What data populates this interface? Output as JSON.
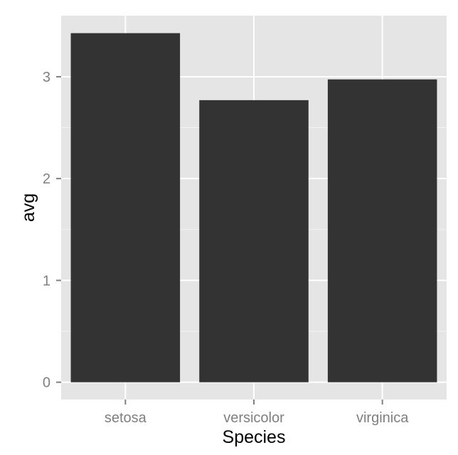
{
  "chart_data": {
    "type": "bar",
    "title": "",
    "xlabel": "Species",
    "ylabel": "avg",
    "categories": [
      "setosa",
      "versicolor",
      "virginica"
    ],
    "values": [
      3.428,
      2.77,
      2.974
    ],
    "ylim": [
      -0.17,
      3.6
    ],
    "yticks": [
      0,
      1,
      2,
      3
    ],
    "ytick_labels": [
      "0",
      "1",
      "2",
      "3"
    ],
    "grid": true,
    "legend": "none",
    "colors": {
      "bar": "#333333",
      "panel": "#e5e5e5",
      "grid_major": "#ffffff",
      "grid_minor": "#f2f2f2",
      "tick": "#7f7f7f"
    }
  }
}
